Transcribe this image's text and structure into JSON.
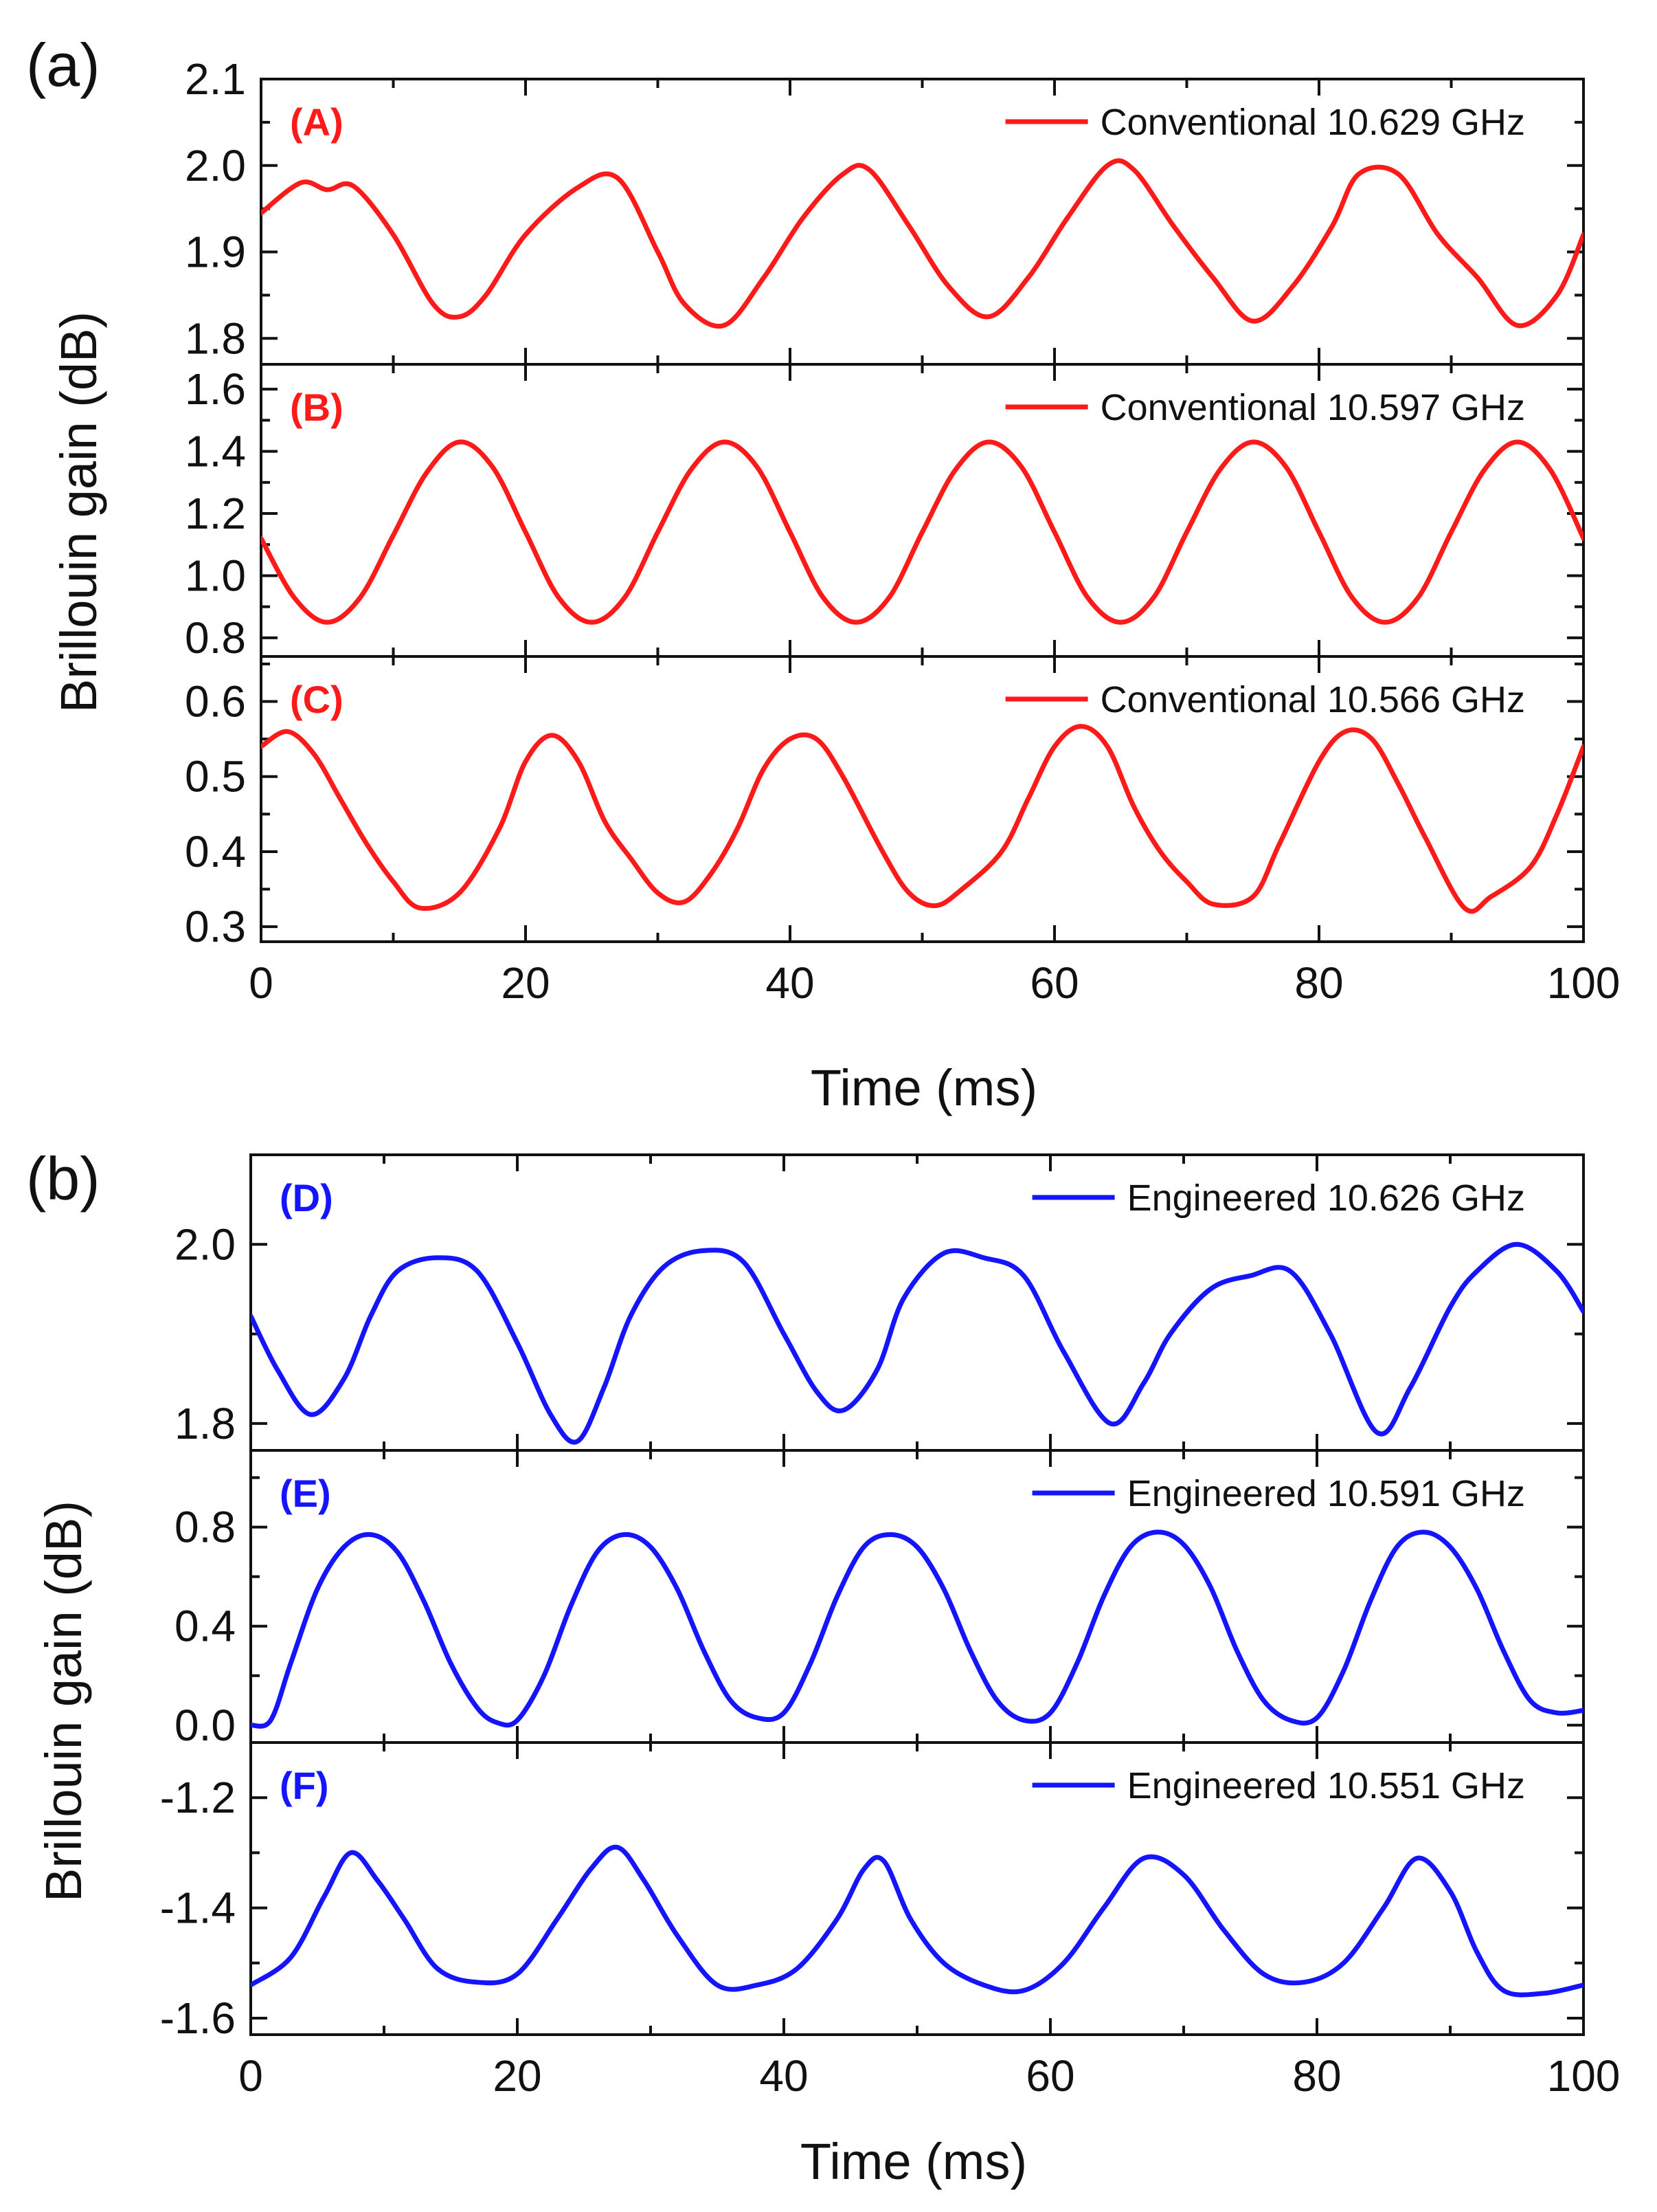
{
  "figure": {
    "group_a_label": "(a)",
    "group_b_label": "(b)"
  },
  "colors": {
    "conventional": "#ff1a1a",
    "engineered": "#1414ff",
    "axis": "#111111"
  },
  "chart_data": [
    {
      "type": "line",
      "group": "(a)",
      "tag": "(A)",
      "title": "",
      "xlabel": "Time (ms)",
      "ylabel": "Brillouin gain (dB)",
      "xlim": [
        0,
        100
      ],
      "ylim": [
        1.77,
        2.1
      ],
      "xticks": [
        "0",
        "20",
        "40",
        "60",
        "80",
        "100"
      ],
      "yticks": [
        {
          "v": 1.8,
          "label": "1.8"
        },
        {
          "v": 1.9,
          "label": "1.9"
        },
        {
          "v": 2.0,
          "label": "2.0"
        },
        {
          "v": 2.1,
          "label": "2.1"
        }
      ],
      "legend": "top-right",
      "series": [
        {
          "name": "Conventional 10.629 GHz",
          "color": "#ff1a1a",
          "x": [
            0,
            3,
            5,
            7,
            10,
            13,
            15,
            17,
            20,
            24,
            27,
            30,
            32,
            35,
            38,
            41,
            44,
            46,
            49,
            52,
            55,
            58,
            61,
            64,
            66,
            69,
            72,
            75,
            78,
            81,
            83,
            86,
            89,
            92,
            95,
            98,
            100
          ],
          "values": [
            1.945,
            1.98,
            1.972,
            1.976,
            1.92,
            1.84,
            1.825,
            1.85,
            1.92,
            1.975,
            1.985,
            1.9,
            1.84,
            1.815,
            1.87,
            1.94,
            1.99,
            1.995,
            1.93,
            1.86,
            1.825,
            1.87,
            1.94,
            2.0,
            1.995,
            1.93,
            1.87,
            1.82,
            1.86,
            1.93,
            1.99,
            1.99,
            1.92,
            1.87,
            1.815,
            1.85,
            1.92
          ]
        }
      ]
    },
    {
      "type": "line",
      "group": "(a)",
      "tag": "(B)",
      "title": "",
      "xlabel": "Time (ms)",
      "ylabel": "Brillouin gain (dB)",
      "xlim": [
        0,
        100
      ],
      "ylim": [
        0.74,
        1.68
      ],
      "xticks": [
        "0",
        "20",
        "40",
        "60",
        "80",
        "100"
      ],
      "yticks": [
        {
          "v": 0.8,
          "label": "0.8"
        },
        {
          "v": 1.0,
          "label": "1.0"
        },
        {
          "v": 1.2,
          "label": "1.2"
        },
        {
          "v": 1.4,
          "label": "1.4"
        },
        {
          "v": 1.6,
          "label": "1.6"
        }
      ],
      "legend": "top-right",
      "series": [
        {
          "name": "Conventional 10.597 GHz",
          "color": "#ff1a1a",
          "x": [
            0,
            2.5,
            5,
            7.5,
            10,
            12.5,
            15,
            17.5,
            20,
            22.5,
            25,
            27.5,
            30,
            32.5,
            35,
            37.5,
            40,
            42.5,
            45,
            47.5,
            50,
            52.5,
            55,
            57.5,
            60,
            62.5,
            65,
            67.5,
            70,
            72.5,
            75,
            77.5,
            80,
            82.5,
            85,
            87.5,
            90,
            92.5,
            95,
            97.5,
            100
          ],
          "values": [
            1.12,
            0.93,
            0.85,
            0.93,
            1.13,
            1.33,
            1.43,
            1.35,
            1.14,
            0.93,
            0.85,
            0.93,
            1.14,
            1.34,
            1.43,
            1.35,
            1.14,
            0.93,
            0.85,
            0.93,
            1.14,
            1.34,
            1.43,
            1.35,
            1.14,
            0.93,
            0.85,
            0.93,
            1.14,
            1.34,
            1.43,
            1.35,
            1.14,
            0.93,
            0.85,
            0.93,
            1.14,
            1.34,
            1.43,
            1.34,
            1.12
          ]
        }
      ]
    },
    {
      "type": "line",
      "group": "(a)",
      "tag": "(C)",
      "title": "",
      "xlabel": "Time (ms)",
      "ylabel": "Brillouin gain (dB)",
      "xlim": [
        0,
        100
      ],
      "ylim": [
        0.28,
        0.66
      ],
      "xticks": [
        "0",
        "20",
        "40",
        "60",
        "80",
        "100"
      ],
      "yticks": [
        {
          "v": 0.3,
          "label": "0.3"
        },
        {
          "v": 0.4,
          "label": "0.4"
        },
        {
          "v": 0.5,
          "label": "0.5"
        },
        {
          "v": 0.6,
          "label": "0.6"
        }
      ],
      "legend": "top-right",
      "series": [
        {
          "name": "Conventional 10.566 GHz",
          "color": "#ff1a1a",
          "x": [
            0,
            2,
            4,
            6,
            8,
            10,
            12,
            15,
            18,
            20,
            22,
            24,
            26,
            28,
            30,
            32,
            34,
            36,
            38,
            40,
            42,
            44,
            47,
            49,
            51,
            53,
            56,
            58,
            60,
            62,
            64,
            66,
            68,
            70,
            72,
            75,
            77,
            80,
            82,
            84,
            86,
            88,
            91,
            93,
            96,
            98,
            100
          ],
          "values": [
            0.54,
            0.56,
            0.53,
            0.47,
            0.41,
            0.36,
            0.325,
            0.345,
            0.43,
            0.52,
            0.555,
            0.52,
            0.44,
            0.39,
            0.345,
            0.333,
            0.37,
            0.43,
            0.51,
            0.55,
            0.55,
            0.5,
            0.4,
            0.345,
            0.328,
            0.35,
            0.4,
            0.47,
            0.54,
            0.567,
            0.54,
            0.46,
            0.4,
            0.36,
            0.33,
            0.34,
            0.41,
            0.52,
            0.56,
            0.55,
            0.49,
            0.42,
            0.325,
            0.34,
            0.38,
            0.45,
            0.54
          ]
        }
      ]
    },
    {
      "type": "line",
      "group": "(b)",
      "tag": "(D)",
      "title": "",
      "xlabel": "Time (ms)",
      "ylabel": "Brillouin gain (dB)",
      "xlim": [
        0,
        100
      ],
      "ylim": [
        1.77,
        2.1
      ],
      "xticks": [
        "0",
        "20",
        "40",
        "60",
        "80",
        "100"
      ],
      "yticks": [
        {
          "v": 1.8,
          "label": "1.8"
        },
        {
          "v": 2.0,
          "label": "2.0"
        }
      ],
      "legend": "top-right",
      "series": [
        {
          "name": "Engineered 10.626 GHz",
          "color": "#1414ff",
          "x": [
            0,
            2,
            4.5,
            7,
            9,
            11,
            14,
            17,
            20,
            22.5,
            24.5,
            26.5,
            28.5,
            31,
            34,
            37,
            40,
            42.5,
            44.5,
            47,
            49,
            52,
            55,
            58,
            61,
            64.5,
            67,
            69,
            72,
            75,
            78,
            81,
            84.5,
            87,
            90,
            92,
            95,
            98,
            100
          ],
          "values": [
            1.92,
            1.86,
            1.81,
            1.85,
            1.92,
            1.97,
            1.985,
            1.97,
            1.89,
            1.81,
            1.78,
            1.84,
            1.92,
            1.975,
            1.993,
            1.98,
            1.9,
            1.835,
            1.815,
            1.86,
            1.94,
            1.99,
            1.985,
            1.965,
            1.88,
            1.8,
            1.845,
            1.9,
            1.95,
            1.965,
            1.97,
            1.9,
            1.79,
            1.84,
            1.93,
            1.97,
            2.0,
            1.97,
            1.925
          ]
        }
      ]
    },
    {
      "type": "line",
      "group": "(b)",
      "tag": "(E)",
      "title": "",
      "xlabel": "Time (ms)",
      "ylabel": "Brillouin gain (dB)",
      "xlim": [
        0,
        100
      ],
      "ylim": [
        -0.07,
        1.11
      ],
      "xticks": [
        "0",
        "20",
        "40",
        "60",
        "80",
        "100"
      ],
      "yticks": [
        {
          "v": 0.0,
          "label": "0.0"
        },
        {
          "v": 0.4,
          "label": "0.4"
        },
        {
          "v": 0.8,
          "label": "0.8"
        }
      ],
      "legend": "top-right",
      "series": [
        {
          "name": "Engineered 10.591 GHz",
          "color": "#1414ff",
          "x": [
            0,
            1.5,
            3,
            5,
            7,
            9,
            11,
            13,
            15,
            17,
            18.5,
            20,
            22,
            24,
            26,
            28,
            30,
            32,
            34,
            36,
            38,
            40,
            42,
            44,
            46,
            48,
            50,
            52,
            54,
            56,
            58,
            60,
            62,
            64,
            66,
            68,
            70,
            72,
            74,
            76,
            78,
            80,
            82,
            84,
            86,
            88,
            90,
            92,
            94,
            96,
            98,
            100
          ],
          "values": [
            0.0,
            0.02,
            0.25,
            0.55,
            0.72,
            0.77,
            0.7,
            0.5,
            0.25,
            0.07,
            0.01,
            0.02,
            0.2,
            0.48,
            0.7,
            0.77,
            0.72,
            0.55,
            0.3,
            0.1,
            0.03,
            0.05,
            0.25,
            0.52,
            0.72,
            0.77,
            0.72,
            0.55,
            0.3,
            0.1,
            0.02,
            0.05,
            0.25,
            0.52,
            0.72,
            0.78,
            0.73,
            0.56,
            0.3,
            0.1,
            0.02,
            0.03,
            0.22,
            0.5,
            0.72,
            0.78,
            0.72,
            0.55,
            0.3,
            0.1,
            0.05,
            0.06
          ]
        }
      ]
    },
    {
      "type": "line",
      "group": "(b)",
      "tag": "(F)",
      "title": "",
      "xlabel": "Time (ms)",
      "ylabel": "Brillouin gain (dB)",
      "xlim": [
        0,
        100
      ],
      "ylim": [
        -1.63,
        -1.1
      ],
      "xticks": [
        "0",
        "20",
        "40",
        "60",
        "80",
        "100"
      ],
      "yticks": [
        {
          "v": -1.6,
          "label": "-1.6"
        },
        {
          "v": -1.4,
          "label": "-1.4"
        },
        {
          "v": -1.2,
          "label": "-1.2"
        }
      ],
      "legend": "top-right",
      "series": [
        {
          "name": "Engineered 10.551 GHz",
          "color": "#1414ff",
          "x": [
            0,
            3,
            5.5,
            7.5,
            9.5,
            11.5,
            14,
            17,
            20,
            23,
            25.5,
            27.5,
            29.5,
            32,
            35,
            38,
            41,
            44,
            46,
            47.5,
            49.5,
            52,
            55,
            58,
            61,
            64,
            67,
            70,
            73,
            76,
            79,
            82,
            85,
            87.5,
            90,
            92,
            94,
            97,
            100
          ],
          "values": [
            -1.54,
            -1.49,
            -1.38,
            -1.3,
            -1.35,
            -1.42,
            -1.51,
            -1.535,
            -1.52,
            -1.42,
            -1.33,
            -1.29,
            -1.35,
            -1.45,
            -1.54,
            -1.54,
            -1.51,
            -1.42,
            -1.33,
            -1.315,
            -1.42,
            -1.5,
            -1.54,
            -1.55,
            -1.5,
            -1.4,
            -1.31,
            -1.34,
            -1.44,
            -1.52,
            -1.535,
            -1.5,
            -1.4,
            -1.31,
            -1.37,
            -1.48,
            -1.55,
            -1.555,
            -1.54
          ]
        }
      ]
    }
  ]
}
